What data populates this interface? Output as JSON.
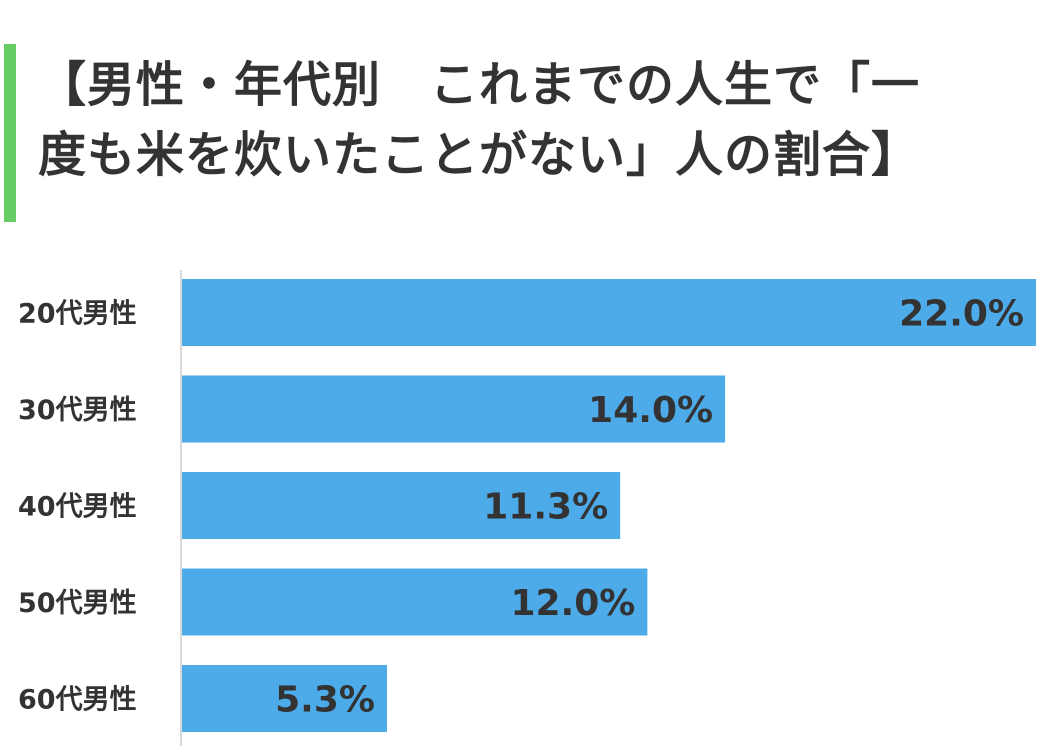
{
  "title": {
    "line1": "【男性・年代別　これまでの人生で「一",
    "line2": "度も米を炊いたことがない」人の割合】"
  },
  "colors": {
    "accent": "#66cc66",
    "bar": "#4eabe9",
    "axis": "#d9d9d9",
    "text": "#333333"
  },
  "chart_data": {
    "type": "bar",
    "orientation": "horizontal",
    "categories": [
      "20代男性",
      "30代男性",
      "40代男性",
      "50代男性",
      "60代男性"
    ],
    "values": [
      22.0,
      14.0,
      11.3,
      12.0,
      5.3
    ],
    "value_labels": [
      "22.0%",
      "14.0%",
      "11.3%",
      "12.0%",
      "5.3%"
    ],
    "xlim": [
      0,
      22
    ],
    "grid": false,
    "legend": "none"
  }
}
